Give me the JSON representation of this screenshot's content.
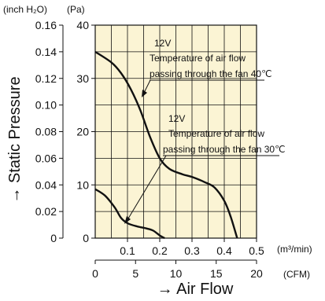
{
  "chart_data": {
    "type": "line",
    "units": {
      "left_outer": "(inch H₂O)",
      "left_inner": "(Pa)",
      "bottom_primary": "(m³/min)",
      "bottom_secondary": "(CFM)"
    },
    "xlabel": "→ Air Flow",
    "ylabel": "→ Static Pressure",
    "xlim": [
      0,
      0.5
    ],
    "ylim": [
      0,
      40
    ],
    "x_ticks": [
      "0.1",
      "0.2",
      "0.3",
      "0.4",
      "0.5"
    ],
    "x2_ticks": [
      "0",
      "5",
      "10",
      "15",
      "20"
    ],
    "y_ticks": [
      "0",
      "10",
      "20",
      "30",
      "40"
    ],
    "y2_ticks": [
      "0",
      "0.02",
      "0.04",
      "0.06",
      "0.08",
      "0.10",
      "0.12",
      "0.14",
      "0.16"
    ],
    "grid": true,
    "background": "#fbf4d4",
    "series": [
      {
        "note_line1": "12V",
        "note_line2": "Temperature of air flow",
        "note_line3": "passing through the fan 40℃",
        "x": [
          0.0,
          0.05,
          0.08,
          0.11,
          0.14,
          0.17,
          0.2,
          0.23,
          0.27,
          0.3,
          0.34,
          0.37,
          0.4,
          0.42,
          0.44
        ],
        "y": [
          35,
          33,
          31,
          28,
          24,
          19,
          15,
          13,
          12,
          11.5,
          10.5,
          9.5,
          7,
          4,
          0
        ]
      },
      {
        "note_line1": "12V",
        "note_line2": "Temperature of air flow",
        "note_line3": "passing through the fan 30℃",
        "x": [
          0.0,
          0.03,
          0.06,
          0.08,
          0.1,
          0.13,
          0.16,
          0.18,
          0.2,
          0.215
        ],
        "y": [
          9.2,
          8,
          5.8,
          3.8,
          2.8,
          2.2,
          1.8,
          1.4,
          0.5,
          0
        ]
      }
    ]
  }
}
